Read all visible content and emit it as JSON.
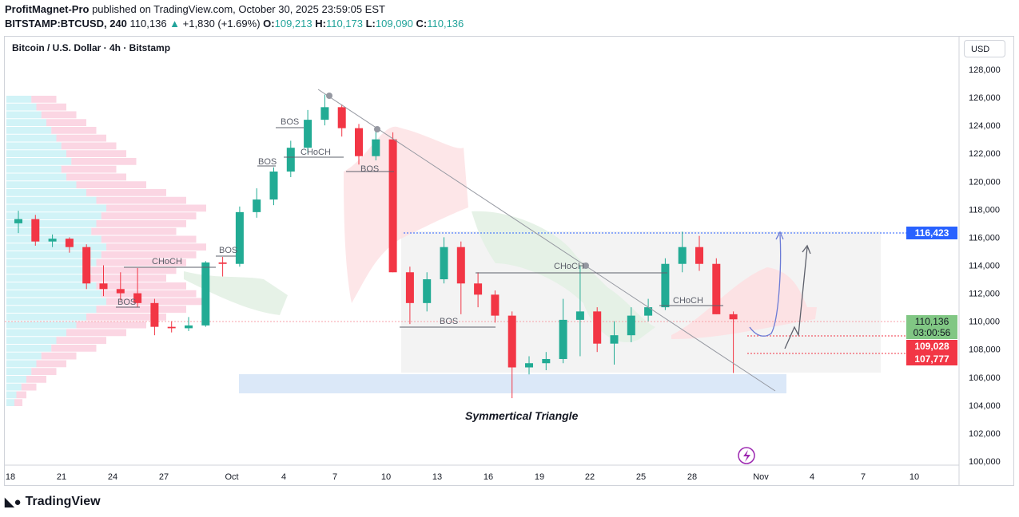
{
  "header": {
    "author": "ProfitMagnet-Pro",
    "published": "published on TradingView.com, October 30, 2025 23:59:05 EST",
    "symbol": "BITSTAMP:BTCUSD, 240",
    "last": "110,136",
    "change": "+1,830 (+1.69%)",
    "o_label": "O:",
    "o": "109,213",
    "h_label": "H:",
    "h": "110,173",
    "l_label": "L:",
    "l": "109,090",
    "c_label": "C:",
    "c": "110,136"
  },
  "chart_title": "Bitcoin / U.S. Dollar · 4h · Bitstamp",
  "currency": "USD",
  "logo": "TradingView",
  "colors": {
    "up": "#22ab94",
    "down": "#f23645",
    "blue": "#2962ff",
    "ichi_red": "#fde0e2",
    "ichi_green": "#e3f1e4"
  },
  "chart_data": {
    "type": "candlestick",
    "yticks": [
      "128,000",
      "126,000",
      "124,000",
      "122,000",
      "120,000",
      "118,000",
      "116,000",
      "114,000",
      "112,000",
      "110,000",
      "108,000",
      "106,000",
      "104,000",
      "102,000",
      "100,000"
    ],
    "xticks": [
      "18",
      "21",
      "24",
      "27",
      "Oct",
      "4",
      "7",
      "10",
      "13",
      "16",
      "19",
      "22",
      "25",
      "28",
      "Nov",
      "4",
      "7",
      "10"
    ],
    "ylim": [
      100000,
      128000
    ],
    "price_labels": [
      {
        "text": "116,423",
        "value": 116423,
        "color": "#2962ff"
      },
      {
        "text": "110,136",
        "sub": "03:00:56",
        "value": 110136,
        "color": "#81c784"
      },
      {
        "text": "109,028",
        "value": 109028,
        "color": "#f23645"
      },
      {
        "text": "107,777",
        "value": 107777,
        "color": "#f23645"
      }
    ],
    "candles_daily_approx": [
      [
        117000,
        117900,
        116300,
        117300
      ],
      [
        117300,
        117600,
        115400,
        115700
      ],
      [
        115700,
        116200,
        115300,
        115900
      ],
      [
        115900,
        116000,
        114900,
        115300
      ],
      [
        115300,
        115500,
        112300,
        112700
      ],
      [
        112700,
        114000,
        111800,
        112300
      ],
      [
        112300,
        113500,
        111500,
        112000
      ],
      [
        112000,
        113800,
        111000,
        111300
      ],
      [
        111300,
        111600,
        109000,
        109600
      ],
      [
        109600,
        110000,
        109200,
        109500
      ],
      [
        109500,
        110300,
        109300,
        109700
      ],
      [
        109700,
        114300,
        109600,
        114200
      ],
      [
        114200,
        114600,
        113200,
        114100
      ],
      [
        114100,
        118200,
        113900,
        117800
      ],
      [
        117800,
        119500,
        117400,
        118700
      ],
      [
        118700,
        121000,
        118300,
        120700
      ],
      [
        120700,
        122900,
        120300,
        122400
      ],
      [
        122400,
        125100,
        122000,
        124400
      ],
      [
        124400,
        126200,
        124000,
        125300
      ],
      [
        125300,
        125500,
        123200,
        123800
      ],
      [
        123800,
        124100,
        121200,
        121800
      ],
      [
        121800,
        123900,
        121500,
        123000
      ],
      [
        123000,
        123500,
        113500,
        113500
      ],
      [
        113500,
        113900,
        109800,
        111300
      ],
      [
        111300,
        113500,
        110700,
        113000
      ],
      [
        113000,
        116000,
        112700,
        115300
      ],
      [
        115300,
        115700,
        110500,
        112700
      ],
      [
        112700,
        113500,
        111000,
        111900
      ],
      [
        111900,
        112200,
        109900,
        110400
      ],
      [
        110400,
        110700,
        104500,
        106700
      ],
      [
        106700,
        107500,
        106200,
        107000
      ],
      [
        107000,
        107800,
        106500,
        107300
      ],
      [
        107300,
        111600,
        107000,
        110100
      ],
      [
        110100,
        114000,
        107500,
        110700
      ],
      [
        110700,
        111000,
        107800,
        108400
      ],
      [
        108400,
        110000,
        106900,
        109000
      ],
      [
        109000,
        111000,
        108500,
        110400
      ],
      [
        110400,
        111600,
        110000,
        111000
      ],
      [
        111000,
        114500,
        110800,
        114100
      ],
      [
        114100,
        116400,
        113500,
        115300
      ],
      [
        115300,
        116100,
        113600,
        114100
      ],
      [
        114100,
        114500,
        110500,
        110500
      ],
      [
        110500,
        110700,
        106300,
        110136
      ]
    ],
    "start_tick_index": 0
  },
  "annotations": {
    "bos": "BOS",
    "choch": "CHoCH",
    "pattern": "Symmertical Triangle"
  },
  "volume_profile": [
    0.25,
    0.3,
    0.35,
    0.4,
    0.45,
    0.5,
    0.55,
    0.6,
    0.65,
    0.55,
    0.6,
    0.7,
    0.8,
    0.9,
    1.0,
    0.95,
    0.9,
    0.85,
    0.95,
    1.0,
    0.95,
    0.9,
    0.85,
    0.8,
    0.9,
    0.95,
    1.0,
    0.9,
    0.8,
    0.7,
    0.6,
    0.5,
    0.45,
    0.35,
    0.3,
    0.25,
    0.2,
    0.15,
    0.1,
    0.08
  ]
}
